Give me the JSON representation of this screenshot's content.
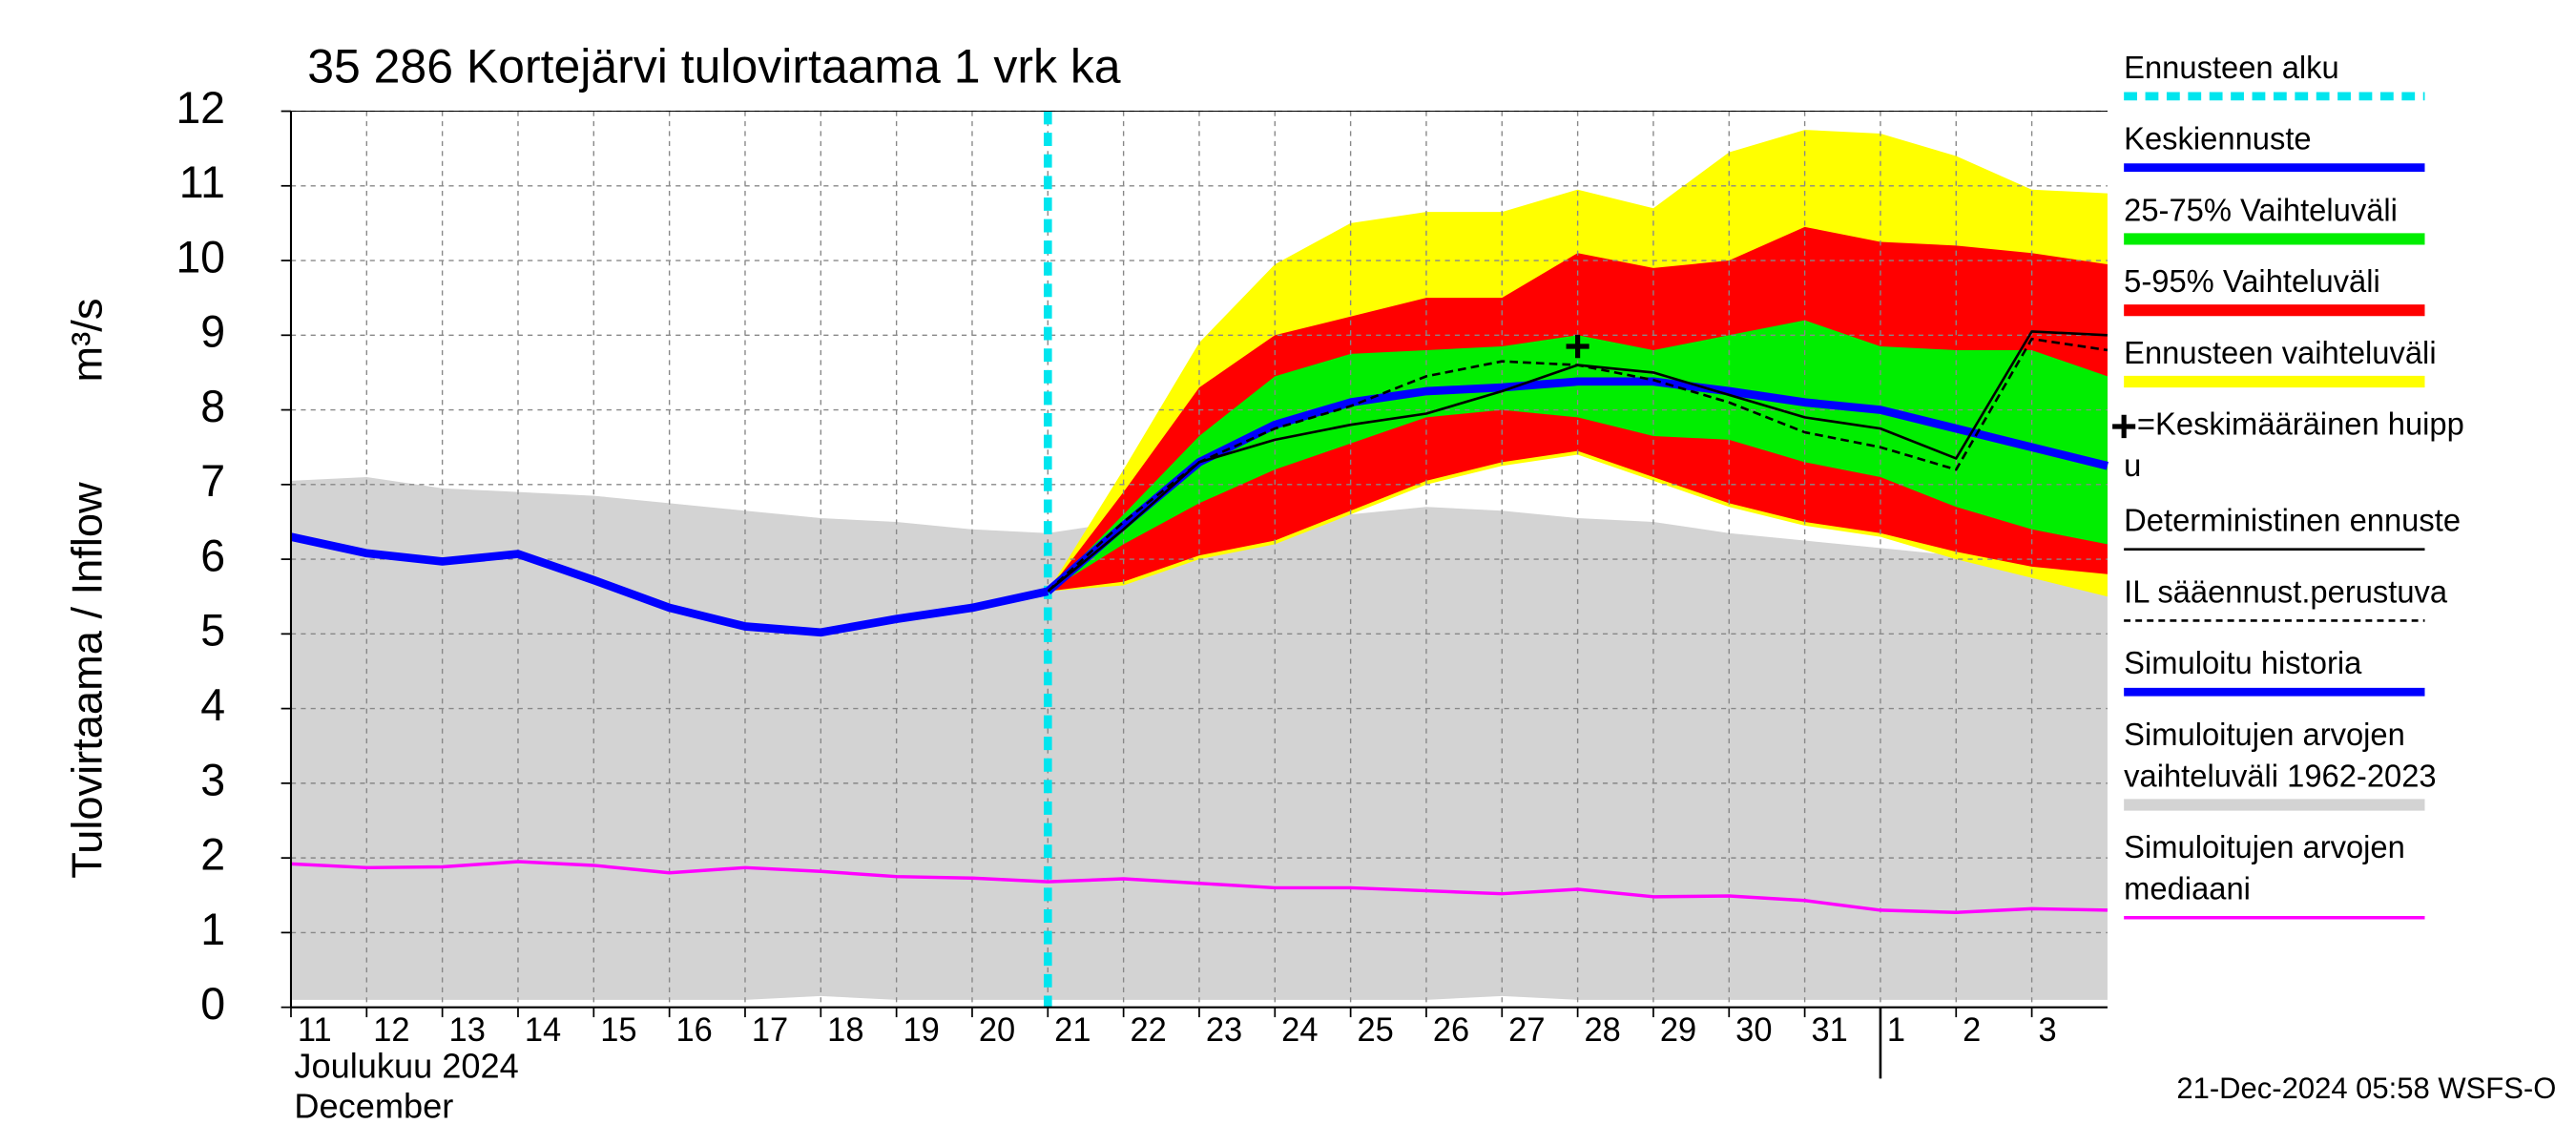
{
  "chart_data": {
    "type": "line",
    "title": "35 286 Kortejärvi tulovirtaama 1 vrk ka",
    "y_label": [
      "Tulovirtaama / Inflow",
      "m³/s"
    ],
    "x_label": [
      "Joulukuu  2024",
      "December"
    ],
    "footer": "21-Dec-2024 05:58 WSFS-O",
    "grid": true,
    "ylim": [
      0,
      12
    ],
    "yticks": [
      0,
      1,
      2,
      3,
      4,
      5,
      6,
      7,
      8,
      9,
      10,
      11,
      12
    ],
    "xlim": [
      "2024-12-11",
      "2025-01-04"
    ],
    "xticks": [
      {
        "value": "2024-12-11",
        "label": "11"
      },
      {
        "value": "2024-12-12",
        "label": "12"
      },
      {
        "value": "2024-12-13",
        "label": "13"
      },
      {
        "value": "2024-12-14",
        "label": "14"
      },
      {
        "value": "2024-12-15",
        "label": "15"
      },
      {
        "value": "2024-12-16",
        "label": "16"
      },
      {
        "value": "2024-12-17",
        "label": "17"
      },
      {
        "value": "2024-12-18",
        "label": "18"
      },
      {
        "value": "2024-12-19",
        "label": "19"
      },
      {
        "value": "2024-12-20",
        "label": "20"
      },
      {
        "value": "2024-12-21",
        "label": "21"
      },
      {
        "value": "2024-12-22",
        "label": "22"
      },
      {
        "value": "2024-12-23",
        "label": "23"
      },
      {
        "value": "2024-12-24",
        "label": "24"
      },
      {
        "value": "2024-12-25",
        "label": "25"
      },
      {
        "value": "2024-12-26",
        "label": "26"
      },
      {
        "value": "2024-12-27",
        "label": "27"
      },
      {
        "value": "2024-12-28",
        "label": "28"
      },
      {
        "value": "2024-12-29",
        "label": "29"
      },
      {
        "value": "2024-12-30",
        "label": "30"
      },
      {
        "value": "2024-12-31",
        "label": "31"
      },
      {
        "value": "2025-01-01",
        "label": "1"
      },
      {
        "value": "2025-01-02",
        "label": "2"
      },
      {
        "value": "2025-01-03",
        "label": "3"
      }
    ],
    "year_divider": "2025-01-01",
    "series": [
      {
        "type": "vline",
        "name": [
          "Ennusteen alku"
        ],
        "color": "#00e5ee",
        "x": "2024-12-21"
      },
      {
        "type": "line",
        "name": [
          "Keskiennuste"
        ],
        "color": "#0000ff",
        "width": 5,
        "x": [
          "2024-12-21",
          "2024-12-22",
          "2024-12-23",
          "2024-12-24",
          "2024-12-25",
          "2024-12-26",
          "2024-12-27",
          "2024-12-28",
          "2024-12-29",
          "2024-12-30",
          "2024-12-31",
          "2025-01-01",
          "2025-01-02",
          "2025-01-03",
          "2025-01-04"
        ],
        "values": [
          5.57,
          6.45,
          7.3,
          7.8,
          8.1,
          8.25,
          8.3,
          8.38,
          8.38,
          8.25,
          8.1,
          8.0,
          7.75,
          7.5,
          7.25
        ]
      },
      {
        "type": "band",
        "name": [
          "25-75% Vaihteluväli"
        ],
        "color": "#00ee00",
        "x": [
          "2024-12-21",
          "2024-12-22",
          "2024-12-23",
          "2024-12-24",
          "2024-12-25",
          "2024-12-26",
          "2024-12-27",
          "2024-12-28",
          "2024-12-29",
          "2024-12-30",
          "2024-12-31",
          "2025-01-01",
          "2025-01-02",
          "2025-01-03",
          "2025-01-04"
        ],
        "upper": [
          5.57,
          6.6,
          7.65,
          8.45,
          8.75,
          8.8,
          8.85,
          9.0,
          8.8,
          9.0,
          9.2,
          8.85,
          8.8,
          8.8,
          8.45
        ],
        "lower": [
          5.57,
          6.2,
          6.75,
          7.2,
          7.55,
          7.9,
          8.0,
          7.9,
          7.65,
          7.6,
          7.3,
          7.1,
          6.7,
          6.4,
          6.2
        ]
      },
      {
        "type": "band",
        "name": [
          "5-95% Vaihteluväli"
        ],
        "color": "#ff0000",
        "x": [
          "2024-12-21",
          "2024-12-22",
          "2024-12-23",
          "2024-12-24",
          "2024-12-25",
          "2024-12-26",
          "2024-12-27",
          "2024-12-28",
          "2024-12-29",
          "2024-12-30",
          "2024-12-31",
          "2025-01-01",
          "2025-01-02",
          "2025-01-03",
          "2025-01-04"
        ],
        "upper": [
          5.57,
          6.9,
          8.3,
          9.0,
          9.25,
          9.5,
          9.5,
          10.1,
          9.9,
          10.0,
          10.45,
          10.25,
          10.2,
          10.1,
          9.95
        ],
        "lower": [
          5.57,
          5.7,
          6.05,
          6.25,
          6.65,
          7.05,
          7.3,
          7.45,
          7.1,
          6.75,
          6.5,
          6.35,
          6.1,
          5.9,
          5.8
        ]
      },
      {
        "type": "band",
        "name": [
          "Ennusteen vaihteluväli"
        ],
        "color": "#ffff00",
        "x": [
          "2024-12-21",
          "2024-12-22",
          "2024-12-23",
          "2024-12-24",
          "2024-12-25",
          "2024-12-26",
          "2024-12-27",
          "2024-12-28",
          "2024-12-29",
          "2024-12-30",
          "2024-12-31",
          "2025-01-01",
          "2025-01-02",
          "2025-01-03",
          "2025-01-04"
        ],
        "upper": [
          5.57,
          7.2,
          8.9,
          9.95,
          10.5,
          10.65,
          10.65,
          10.95,
          10.7,
          11.45,
          11.75,
          11.7,
          11.4,
          10.95,
          10.9
        ],
        "lower": [
          5.57,
          5.65,
          6.0,
          6.2,
          6.6,
          7.0,
          7.25,
          7.4,
          7.05,
          6.7,
          6.45,
          6.3,
          6.0,
          5.75,
          5.5
        ]
      },
      {
        "type": "marker",
        "name": [
          "=Keskimääräinen huipp",
          "u"
        ],
        "color": "#000000",
        "x": "2024-12-28",
        "value": 8.85
      },
      {
        "type": "line",
        "name": [
          "Deterministinen ennuste"
        ],
        "color": "#000000",
        "width": 1.5,
        "x": [
          "2024-12-21",
          "2024-12-22",
          "2024-12-23",
          "2024-12-24",
          "2024-12-25",
          "2024-12-26",
          "2024-12-27",
          "2024-12-28",
          "2024-12-29",
          "2024-12-30",
          "2024-12-31",
          "2025-01-01",
          "2025-01-02",
          "2025-01-03",
          "2025-01-04"
        ],
        "values": [
          5.57,
          6.4,
          7.3,
          7.6,
          7.8,
          7.95,
          8.25,
          8.6,
          8.5,
          8.2,
          7.9,
          7.75,
          7.35,
          9.05,
          9.0
        ]
      },
      {
        "type": "line",
        "name": [
          "IL sääennust.perustuva"
        ],
        "color": "#000000",
        "width": 1.5,
        "dashed": true,
        "x": [
          "2024-12-21",
          "2024-12-22",
          "2024-12-23",
          "2024-12-24",
          "2024-12-25",
          "2024-12-26",
          "2024-12-27",
          "2024-12-28",
          "2024-12-29",
          "2024-12-30",
          "2024-12-31",
          "2025-01-01",
          "2025-01-02",
          "2025-01-03",
          "2025-01-04"
        ],
        "values": [
          5.57,
          6.5,
          7.3,
          7.75,
          8.05,
          8.45,
          8.65,
          8.6,
          8.4,
          8.1,
          7.7,
          7.5,
          7.2,
          8.95,
          8.8
        ]
      },
      {
        "type": "line",
        "name": [
          "Simuloitu historia"
        ],
        "color": "#0000ff",
        "width": 5,
        "x": [
          "2024-12-11",
          "2024-12-12",
          "2024-12-13",
          "2024-12-14",
          "2024-12-15",
          "2024-12-16",
          "2024-12-17",
          "2024-12-18",
          "2024-12-19",
          "2024-12-20",
          "2024-12-21"
        ],
        "values": [
          6.3,
          6.08,
          5.97,
          6.07,
          5.72,
          5.35,
          5.1,
          5.02,
          5.2,
          5.35,
          5.57
        ]
      },
      {
        "type": "band",
        "name": [
          "Simuloitujen arvojen",
          "vaihteluväli 1962-2023"
        ],
        "color": "#d3d3d3",
        "x": [
          "2024-12-11",
          "2024-12-12",
          "2024-12-13",
          "2024-12-14",
          "2024-12-15",
          "2024-12-16",
          "2024-12-17",
          "2024-12-18",
          "2024-12-19",
          "2024-12-20",
          "2024-12-21",
          "2024-12-22",
          "2024-12-23",
          "2024-12-24",
          "2024-12-25",
          "2024-12-26",
          "2024-12-27",
          "2024-12-28",
          "2024-12-29",
          "2024-12-30",
          "2024-12-31",
          "2025-01-01",
          "2025-01-02",
          "2025-01-03",
          "2025-01-04"
        ],
        "upper": [
          7.05,
          7.1,
          6.95,
          6.9,
          6.85,
          6.75,
          6.65,
          6.55,
          6.5,
          6.4,
          6.35,
          6.5,
          6.5,
          6.4,
          6.6,
          6.7,
          6.65,
          6.55,
          6.5,
          6.35,
          6.25,
          6.15,
          6.05,
          5.95,
          5.9
        ],
        "lower": [
          0.1,
          0.1,
          0.1,
          0.1,
          0.1,
          0.1,
          0.1,
          0.15,
          0.1,
          0.1,
          0.1,
          0.1,
          0.1,
          0.1,
          0.1,
          0.1,
          0.15,
          0.1,
          0.1,
          0.1,
          0.1,
          0.1,
          0.1,
          0.1,
          0.1
        ]
      },
      {
        "type": "line",
        "name": [
          "Simuloitujen arvojen",
          "mediaani"
        ],
        "color": "#ff00ff",
        "width": 2,
        "x": [
          "2024-12-11",
          "2024-12-12",
          "2024-12-13",
          "2024-12-14",
          "2024-12-15",
          "2024-12-16",
          "2024-12-17",
          "2024-12-18",
          "2024-12-19",
          "2024-12-20",
          "2024-12-21",
          "2024-12-22",
          "2024-12-23",
          "2024-12-24",
          "2024-12-25",
          "2024-12-26",
          "2024-12-27",
          "2024-12-28",
          "2024-12-29",
          "2024-12-30",
          "2024-12-31",
          "2025-01-01",
          "2025-01-02",
          "2025-01-03",
          "2025-01-04"
        ],
        "values": [
          1.92,
          1.87,
          1.88,
          1.95,
          1.9,
          1.8,
          1.87,
          1.82,
          1.75,
          1.73,
          1.68,
          1.72,
          1.66,
          1.6,
          1.6,
          1.56,
          1.52,
          1.58,
          1.48,
          1.49,
          1.43,
          1.3,
          1.27,
          1.32,
          1.3
        ]
      }
    ]
  }
}
